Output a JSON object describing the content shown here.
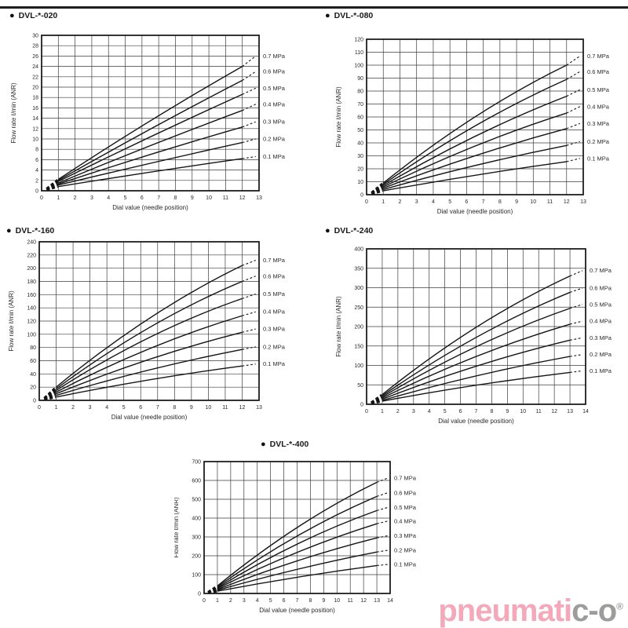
{
  "bullet": "●",
  "header": {
    "rule_color": "#1f1f1f"
  },
  "chart_style": {
    "line_color": "#141414",
    "grid_color": "#3c3c3c",
    "border_color": "#111111",
    "text_color": "#2a2a2a"
  },
  "chart_data": [
    {
      "type": "line",
      "title": "DVL-*-020",
      "xlabel": "Dial value (needle position)",
      "ylabel": "Flow rate ℓ/min (ANR)",
      "xlim": [
        0,
        13
      ],
      "xtick_step": 1,
      "ylim": [
        0,
        30
      ],
      "ytick_step": 2,
      "grid": true,
      "legend_position": "right",
      "x_dash_start": 0.3,
      "x_solid_start": 1,
      "x_mid": 6.5,
      "x_solid_end": 12,
      "x_dash_end": 12.8,
      "series": [
        {
          "name": "0.7 MPa",
          "y_at_start": 2.2,
          "y_at_mid": 13.5,
          "y_at_end": 24.0,
          "y_label": 26.0
        },
        {
          "name": "0.6 MPa",
          "y_at_start": 2.0,
          "y_at_mid": 11.9,
          "y_at_end": 21.3,
          "y_label": 23.0
        },
        {
          "name": "0.5 MPa",
          "y_at_start": 1.8,
          "y_at_mid": 10.4,
          "y_at_end": 18.6,
          "y_label": 19.8
        },
        {
          "name": "0.4 MPa",
          "y_at_start": 1.5,
          "y_at_mid": 8.7,
          "y_at_end": 15.5,
          "y_label": 16.7
        },
        {
          "name": "0.3 MPa",
          "y_at_start": 1.3,
          "y_at_mid": 7.0,
          "y_at_end": 12.3,
          "y_label": 13.3
        },
        {
          "name": "0.2 MPa",
          "y_at_start": 1.1,
          "y_at_mid": 5.3,
          "y_at_end": 9.3,
          "y_label": 10.0
        },
        {
          "name": "0.1 MPa",
          "y_at_start": 0.8,
          "y_at_mid": 3.6,
          "y_at_end": 6.2,
          "y_label": 6.6
        }
      ]
    },
    {
      "type": "line",
      "title": "DVL-*-080",
      "xlabel": "Dial value (needle position)",
      "ylabel": "Flow rate ℓ/min (ANR)",
      "xlim": [
        0,
        13
      ],
      "xtick_step": 1,
      "ylim": [
        0,
        120
      ],
      "ytick_step": 10,
      "grid": true,
      "legend_position": "right",
      "x_dash_start": 0.3,
      "x_solid_start": 1,
      "x_mid": 6.5,
      "x_solid_end": 12,
      "x_dash_end": 12.8,
      "series": [
        {
          "name": "0.7 MPa",
          "y_at_start": 9.0,
          "y_at_mid": 60.0,
          "y_at_end": 100.0,
          "y_label": 107.0
        },
        {
          "name": "0.6 MPa",
          "y_at_start": 8.0,
          "y_at_mid": 53.0,
          "y_at_end": 89.0,
          "y_label": 95.0
        },
        {
          "name": "0.5 MPa",
          "y_at_start": 7.0,
          "y_at_mid": 45.0,
          "y_at_end": 76.0,
          "y_label": 81.0
        },
        {
          "name": "0.4 MPa",
          "y_at_start": 6.0,
          "y_at_mid": 37.5,
          "y_at_end": 63.0,
          "y_label": 68.0
        },
        {
          "name": "0.3 MPa",
          "y_at_start": 5.0,
          "y_at_mid": 30.0,
          "y_at_end": 51.0,
          "y_label": 55.0
        },
        {
          "name": "0.2 MPa",
          "y_at_start": 4.0,
          "y_at_mid": 22.5,
          "y_at_end": 38.0,
          "y_label": 41.0
        },
        {
          "name": "0.1 MPa",
          "y_at_start": 3.0,
          "y_at_mid": 15.0,
          "y_at_end": 25.5,
          "y_label": 28.0
        }
      ]
    },
    {
      "type": "line",
      "title": "DVL-*-160",
      "xlabel": "Dial value (needle position)",
      "ylabel": "Flow rate ℓ/min (ANR)",
      "xlim": [
        0,
        13
      ],
      "xtick_step": 1,
      "ylim": [
        0,
        240
      ],
      "ytick_step": 20,
      "grid": true,
      "legend_position": "right",
      "x_dash_start": 0.3,
      "x_solid_start": 1,
      "x_mid": 6.5,
      "x_solid_end": 12,
      "x_dash_end": 12.8,
      "series": [
        {
          "name": "0.7 MPa",
          "y_at_start": 20.0,
          "y_at_mid": 124.0,
          "y_at_end": 204.0,
          "y_label": 212.0
        },
        {
          "name": "0.6 MPa",
          "y_at_start": 17.5,
          "y_at_mid": 110.0,
          "y_at_end": 180.0,
          "y_label": 188.0
        },
        {
          "name": "0.5 MPa",
          "y_at_start": 15.0,
          "y_at_mid": 95.0,
          "y_at_end": 154.0,
          "y_label": 161.0
        },
        {
          "name": "0.4 MPa",
          "y_at_start": 12.5,
          "y_at_mid": 78.0,
          "y_at_end": 128.0,
          "y_label": 134.0
        },
        {
          "name": "0.3 MPa",
          "y_at_start": 10.0,
          "y_at_mid": 62.0,
          "y_at_end": 103.0,
          "y_label": 108.0
        },
        {
          "name": "0.2 MPa",
          "y_at_start": 7.5,
          "y_at_mid": 46.0,
          "y_at_end": 77.0,
          "y_label": 81.0
        },
        {
          "name": "0.1 MPa",
          "y_at_start": 5.0,
          "y_at_mid": 31.0,
          "y_at_end": 52.0,
          "y_label": 55.0
        }
      ]
    },
    {
      "type": "line",
      "title": "DVL-*-240",
      "xlabel": "Dial value (needle position)",
      "ylabel": "Flow rate ℓ/min (ANR)",
      "xlim": [
        0,
        14
      ],
      "xtick_step": 1,
      "ylim": [
        0,
        400
      ],
      "ytick_step": 50,
      "grid": true,
      "legend_position": "right",
      "x_dash_start": 0.3,
      "x_solid_start": 1,
      "x_mid": 7,
      "x_solid_end": 13,
      "x_dash_end": 13.8,
      "series": [
        {
          "name": "0.7 MPa",
          "y_at_start": 25.0,
          "y_at_mid": 198.0,
          "y_at_end": 330.0,
          "y_label": 344.0
        },
        {
          "name": "0.6 MPa",
          "y_at_start": 22.0,
          "y_at_mid": 172.0,
          "y_at_end": 288.0,
          "y_label": 299.0
        },
        {
          "name": "0.5 MPa",
          "y_at_start": 19.0,
          "y_at_mid": 148.0,
          "y_at_end": 247.0,
          "y_label": 257.0
        },
        {
          "name": "0.4 MPa",
          "y_at_start": 16.0,
          "y_at_mid": 123.0,
          "y_at_end": 206.0,
          "y_label": 214.0
        },
        {
          "name": "0.3 MPa",
          "y_at_start": 13.0,
          "y_at_mid": 98.0,
          "y_at_end": 165.0,
          "y_label": 171.0
        },
        {
          "name": "0.2 MPa",
          "y_at_start": 10.0,
          "y_at_mid": 73.0,
          "y_at_end": 123.0,
          "y_label": 128.0
        },
        {
          "name": "0.1 MPa",
          "y_at_start": 8.0,
          "y_at_mid": 49.0,
          "y_at_end": 82.0,
          "y_label": 86.0
        }
      ]
    },
    {
      "type": "line",
      "title": "DVL-*-400",
      "xlabel": "Dial value (needle position)",
      "ylabel": "Flow rate ℓ/min (ANR)",
      "xlim": [
        0,
        14
      ],
      "xtick_step": 1,
      "ylim": [
        0,
        700
      ],
      "ytick_step": 100,
      "grid": true,
      "legend_position": "right",
      "x_dash_start": 0.3,
      "x_solid_start": 1,
      "x_mid": 7,
      "x_solid_end": 13,
      "x_dash_end": 13.8,
      "series": [
        {
          "name": "0.7 MPa",
          "y_at_start": 40.0,
          "y_at_mid": 350.0,
          "y_at_end": 590.0,
          "y_label": 612.0
        },
        {
          "name": "0.6 MPa",
          "y_at_start": 35.0,
          "y_at_mid": 305.0,
          "y_at_end": 515.0,
          "y_label": 534.0
        },
        {
          "name": "0.5 MPa",
          "y_at_start": 30.0,
          "y_at_mid": 262.0,
          "y_at_end": 440.0,
          "y_label": 456.0
        },
        {
          "name": "0.4 MPa",
          "y_at_start": 26.0,
          "y_at_mid": 218.0,
          "y_at_end": 370.0,
          "y_label": 384.0
        },
        {
          "name": "0.3 MPa",
          "y_at_start": 21.0,
          "y_at_mid": 173.0,
          "y_at_end": 295.0,
          "y_label": 306.0
        },
        {
          "name": "0.2 MPa",
          "y_at_start": 17.0,
          "y_at_mid": 128.0,
          "y_at_end": 220.0,
          "y_label": 229.0
        },
        {
          "name": "0.1 MPa",
          "y_at_start": 12.0,
          "y_at_mid": 86.0,
          "y_at_end": 148.0,
          "y_label": 154.0
        }
      ]
    }
  ],
  "footer": {
    "logo": {
      "pink_text": "pneumati",
      "gray_text": "c-o",
      "registered": "®",
      "pink_color": "#f3a9ba",
      "gray_color": "#9c9c9b"
    }
  }
}
